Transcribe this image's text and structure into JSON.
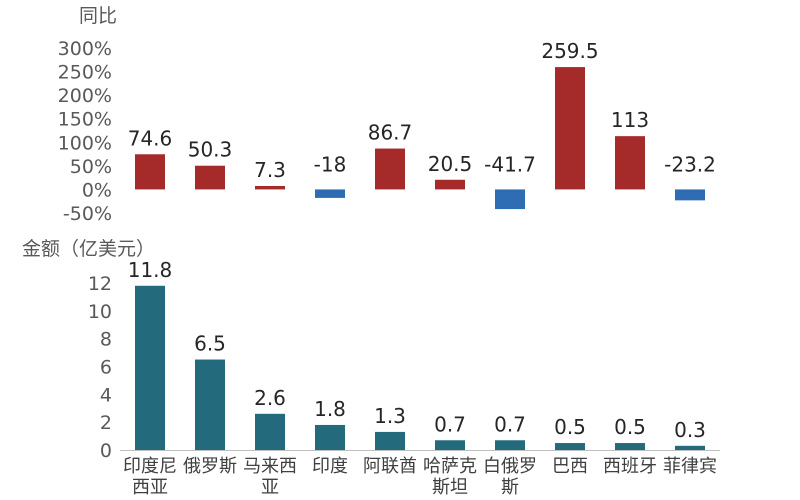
{
  "chart_data": [
    {
      "type": "bar",
      "ylabel": "同比",
      "categories": [
        "印度尼西亚",
        "俄罗斯",
        "马来西亚",
        "印度",
        "阿联酋",
        "哈萨克斯坦",
        "白俄罗斯",
        "巴西",
        "西班牙",
        "菲律宾"
      ],
      "values": [
        74.6,
        50.3,
        7.3,
        -18,
        86.7,
        20.5,
        -41.7,
        259.5,
        113,
        -23.2
      ],
      "data_labels": [
        "74.6",
        "50.3",
        "7.3",
        "-18",
        "86.7",
        "20.5",
        "-41.7",
        "259.5",
        "113",
        "-23.2"
      ],
      "ylim": [
        -50,
        300
      ],
      "yticks": [
        300,
        250,
        200,
        150,
        100,
        50,
        0,
        -50
      ],
      "ytick_labels": [
        "300%",
        "250%",
        "200%",
        "150%",
        "100%",
        "50%",
        "0%",
        "-50%"
      ],
      "colors": {
        "positive": "#A52A2A",
        "negative": "#2E6DB4"
      },
      "grid": false
    },
    {
      "type": "bar",
      "ylabel": "金额（亿美元）",
      "categories": [
        "印度尼西亚",
        "俄罗斯",
        "马来西亚",
        "印度",
        "阿联酋",
        "哈萨克斯坦",
        "白俄罗斯",
        "巴西",
        "西班牙",
        "菲律宾"
      ],
      "category_lines": [
        [
          "印度尼",
          "西亚"
        ],
        [
          "俄罗斯"
        ],
        [
          "马来西",
          "亚"
        ],
        [
          "印度"
        ],
        [
          "阿联酋"
        ],
        [
          "哈萨克",
          "斯坦"
        ],
        [
          "白俄罗",
          "斯"
        ],
        [
          "巴西"
        ],
        [
          "西班牙"
        ],
        [
          "菲律宾"
        ]
      ],
      "values": [
        11.8,
        6.5,
        2.6,
        1.8,
        1.3,
        0.7,
        0.7,
        0.5,
        0.5,
        0.3
      ],
      "data_labels": [
        "11.8",
        "6.5",
        "2.6",
        "1.8",
        "1.3",
        "0.7",
        "0.7",
        "0.5",
        "0.5",
        "0.3"
      ],
      "ylim": [
        0,
        12
      ],
      "yticks": [
        12,
        10,
        8,
        6,
        4,
        2,
        0
      ],
      "ytick_labels": [
        "12",
        "10",
        "8",
        "6",
        "4",
        "2",
        "0"
      ],
      "colors": {
        "bar": "#236B7C"
      },
      "grid": false
    }
  ]
}
